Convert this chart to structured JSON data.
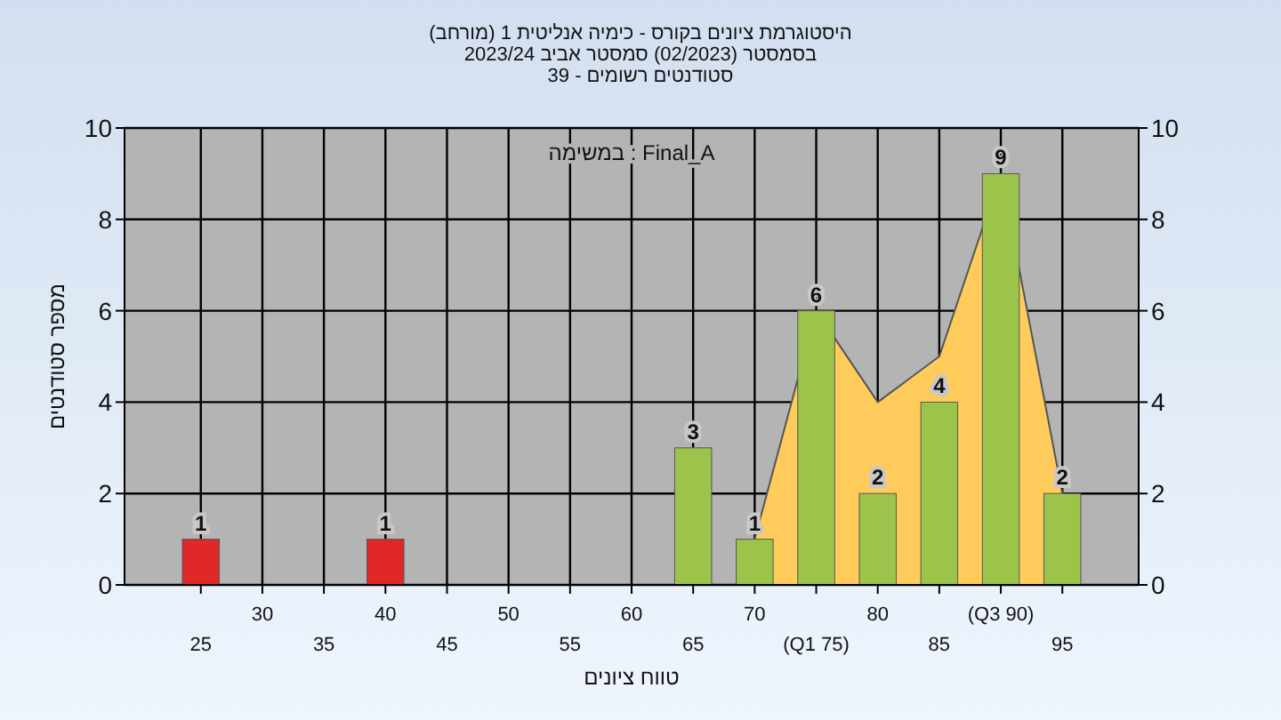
{
  "chart_data": {
    "type": "bar",
    "title": "היסטוגרמת ציונים בקורס - כימיה אנליטית 1 (מורחב)\nבסמסטר (02/2023) סמסטר אביב 2023/24",
    "subtitle": "סטודנטים רשומים - 39",
    "xlabel": "טווח ציונים",
    "ylabel": "מספר סטודנטים",
    "annotations": [
      "במשימה : Final_A"
    ],
    "categories": [
      "25",
      "30",
      "35",
      "40",
      "45",
      "50",
      "55",
      "60",
      "65",
      "70",
      "(Q1 75)",
      "80",
      "85",
      "(Q3 90)",
      "95"
    ],
    "series": [
      {
        "type": "area",
        "color": "#ffcc5c",
        "values": [
          null,
          null,
          null,
          null,
          null,
          null,
          null,
          null,
          null,
          1,
          6,
          4,
          5,
          9,
          2
        ]
      },
      {
        "colors": [
          "#e02828",
          "#e02828",
          "#e02828",
          "#e02828",
          "#e02828",
          "#e02828",
          "#e02828",
          "#e02828",
          "#9cc44a",
          "#9cc44a",
          "#9cc44a",
          "#9cc44a",
          "#9cc44a",
          "#9cc44a",
          "#9cc44a"
        ],
        "values": [
          1,
          0,
          0,
          1,
          0,
          0,
          0,
          0,
          3,
          1,
          6,
          2,
          4,
          9,
          2
        ],
        "value_labels": [
          "1",
          null,
          null,
          "1",
          null,
          null,
          null,
          null,
          "3",
          "1",
          "6",
          "2",
          "4",
          "9",
          "2"
        ]
      }
    ],
    "ylim": [
      0,
      10
    ],
    "yticks": [
      0,
      2,
      4,
      6,
      8,
      10
    ],
    "y2lim": [
      0,
      10
    ],
    "y2ticks": [
      0,
      2,
      4,
      6,
      8,
      10
    ],
    "grid": true
  }
}
